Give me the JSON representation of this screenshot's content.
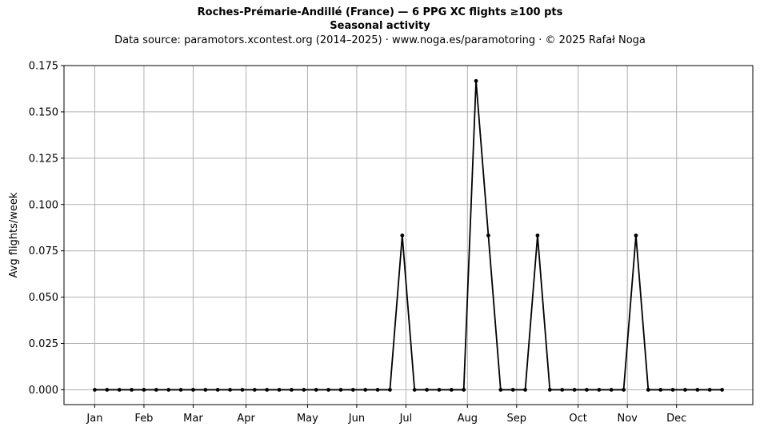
{
  "header": {
    "title": "Roches-Prémarie-Andillé (France)  —  6 PPG XC flights ≥100 pts",
    "subtitle_bold": "Seasonal activity",
    "source_line": "Data source: paramotors.xcontest.org (2014–2025)  ·  www.noga.es/paramotoring  ·  © 2025 Rafał Noga"
  },
  "chart_data": {
    "type": "line",
    "title": "Roches-Prémarie-Andillé (France)  —  6 PPG XC flights ≥100 pts",
    "subtitle": "Seasonal activity",
    "xlabel": "",
    "ylabel": "Avg flights/week",
    "ylim": [
      -0.008,
      0.175
    ],
    "xlim": [
      -2.5,
      53.5
    ],
    "grid": true,
    "x_ticks": [
      {
        "x": 0,
        "label": "Jan"
      },
      {
        "x": 4,
        "label": "Feb"
      },
      {
        "x": 8,
        "label": "Mar"
      },
      {
        "x": 12.3,
        "label": "Apr"
      },
      {
        "x": 17.3,
        "label": "May"
      },
      {
        "x": 21.3,
        "label": "Jun"
      },
      {
        "x": 25.3,
        "label": "Jul"
      },
      {
        "x": 30.3,
        "label": "Aug"
      },
      {
        "x": 34.3,
        "label": "Sep"
      },
      {
        "x": 39.3,
        "label": "Oct"
      },
      {
        "x": 43.3,
        "label": "Nov"
      },
      {
        "x": 47.3,
        "label": "Dec"
      }
    ],
    "y_ticks": [
      "0.000",
      "0.025",
      "0.050",
      "0.075",
      "0.100",
      "0.125",
      "0.150",
      "0.175"
    ],
    "series": [
      {
        "color": "#000000",
        "x": [
          0,
          1,
          2,
          3,
          4,
          5,
          6,
          7,
          8,
          9,
          10,
          11,
          12,
          13,
          14,
          15,
          16,
          17,
          18,
          19,
          20,
          21,
          22,
          23,
          24,
          25,
          26,
          27,
          28,
          29,
          30,
          31,
          32,
          33,
          34,
          35,
          36,
          37,
          38,
          39,
          40,
          41,
          42,
          43,
          44,
          45,
          46,
          47,
          48,
          49,
          50,
          51
        ],
        "y": [
          0,
          0,
          0,
          0,
          0,
          0,
          0,
          0,
          0,
          0,
          0,
          0,
          0,
          0,
          0,
          0,
          0,
          0,
          0,
          0,
          0,
          0,
          0,
          0,
          0,
          0.0833,
          0,
          0,
          0,
          0,
          0,
          0.1667,
          0.0833,
          0,
          0,
          0,
          0.0833,
          0,
          0,
          0,
          0,
          0,
          0,
          0,
          0.0833,
          0,
          0,
          0,
          0,
          0,
          0,
          0
        ]
      }
    ]
  }
}
